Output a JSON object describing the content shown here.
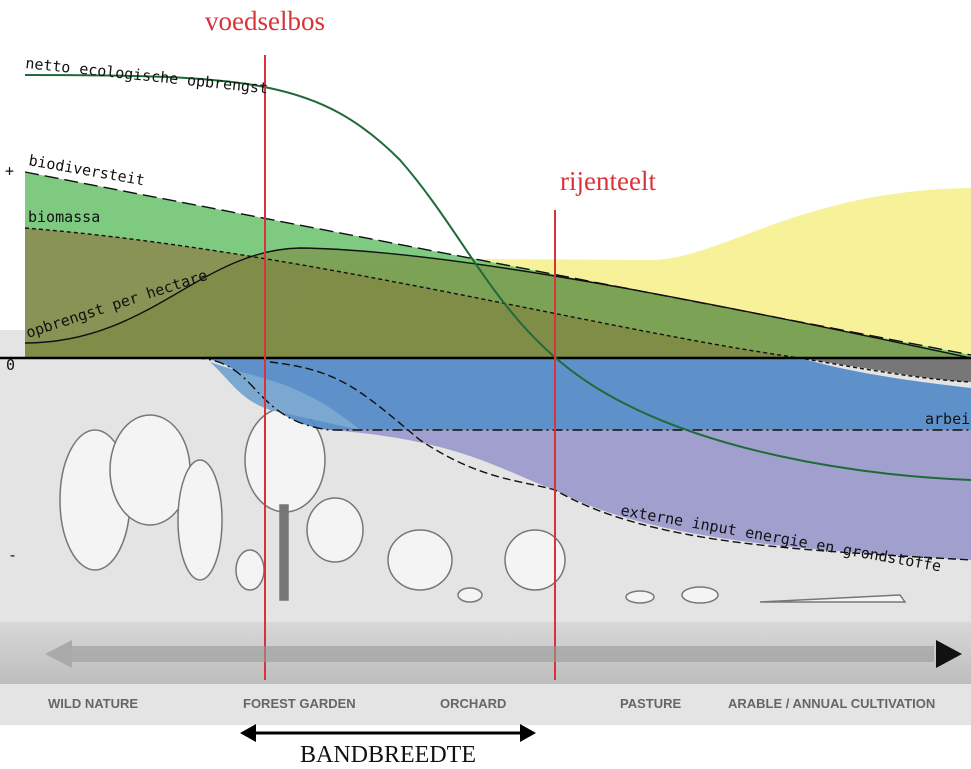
{
  "markers": [
    "voedselbos",
    "rijenteelt"
  ],
  "curves": {
    "net_yield": "netto ecologische opbrengst",
    "biodiversity": "biodiversteit",
    "biomass": "biomassa",
    "yield_per_hectare": "opbrengst per hectare",
    "labour": "arbei",
    "external_input": "externe input energie en grondstoffe"
  },
  "axis": {
    "plus": "+",
    "zero": "0",
    "minus": "-"
  },
  "spectrum": [
    "WILD NATURE",
    "FOREST GARDEN",
    "ORCHARD",
    "PASTURE",
    "ARABLE / ANNUAL CULTIVATION"
  ],
  "bandwidth": "BANDBREEDTE"
}
